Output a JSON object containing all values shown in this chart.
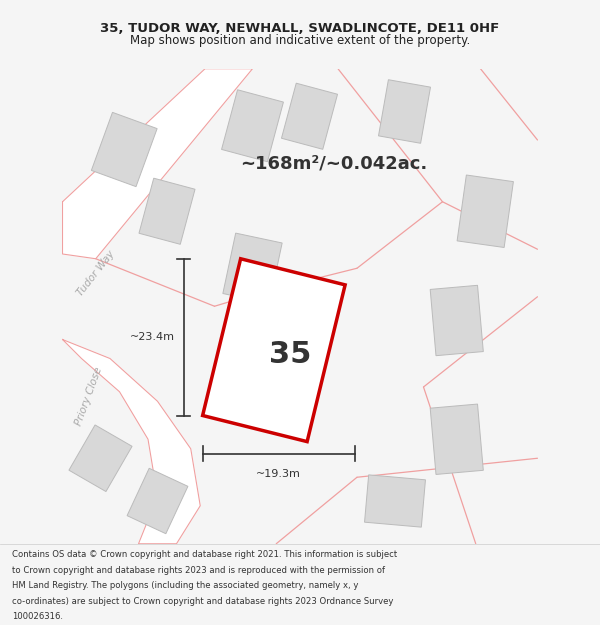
{
  "title_line1": "35, TUDOR WAY, NEWHALL, SWADLINCOTE, DE11 0HF",
  "title_line2": "Map shows position and indicative extent of the property.",
  "area_label": "~168m²/~0.042ac.",
  "plot_number": "35",
  "dim_width": "~19.3m",
  "dim_height": "~23.4m",
  "street_label1": "Tudor Way",
  "street_label2": "Priory Close",
  "footer_lines": [
    "Contains OS data © Crown copyright and database right 2021. This information is subject",
    "to Crown copyright and database rights 2023 and is reproduced with the permission of",
    "HM Land Registry. The polygons (including the associated geometry, namely x, y",
    "co-ordinates) are subject to Crown copyright and database rights 2023 Ordnance Survey",
    "100026316."
  ],
  "bg_color": "#f5f5f5",
  "map_bg": "#eeecec",
  "footer_bg": "#ffffff",
  "road_color": "#ffffff",
  "road_line_color": "#f0a0a0",
  "building_fill": "#d8d8d8",
  "building_edge": "#bbbbbb",
  "plot_fill": "#ffffff",
  "plot_edge_color": "#cc0000",
  "dim_color": "#333333",
  "text_color": "#333333",
  "title_color": "#222222"
}
